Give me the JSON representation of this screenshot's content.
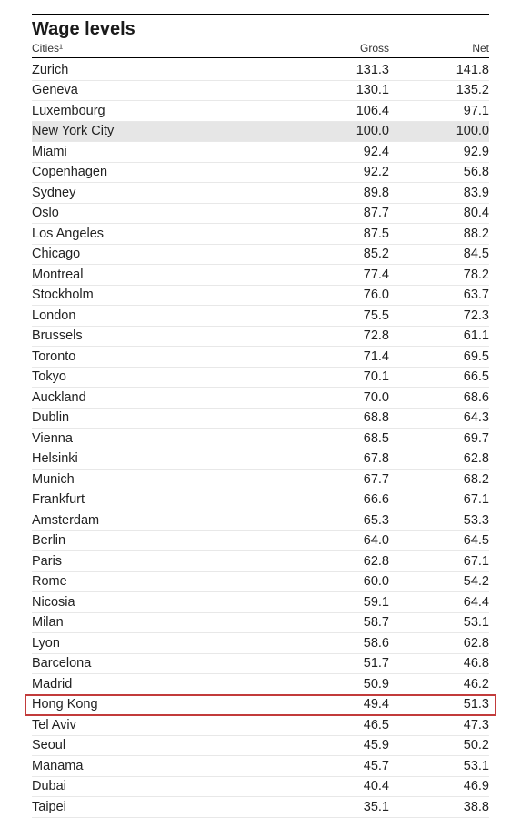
{
  "title": "Wage levels",
  "columns": {
    "city": "Cities¹",
    "gross": "Gross",
    "net": "Net"
  },
  "highlightCity": "Hong Kong",
  "grayCity": "New York City",
  "rows": [
    {
      "city": "Zurich",
      "gross": "131.3",
      "net": "141.8"
    },
    {
      "city": "Geneva",
      "gross": "130.1",
      "net": "135.2"
    },
    {
      "city": "Luxembourg",
      "gross": "106.4",
      "net": "97.1"
    },
    {
      "city": "New York City",
      "gross": "100.0",
      "net": "100.0"
    },
    {
      "city": "Miami",
      "gross": "92.4",
      "net": "92.9"
    },
    {
      "city": "Copenhagen",
      "gross": "92.2",
      "net": "56.8"
    },
    {
      "city": "Sydney",
      "gross": "89.8",
      "net": "83.9"
    },
    {
      "city": "Oslo",
      "gross": "87.7",
      "net": "80.4"
    },
    {
      "city": "Los Angeles",
      "gross": "87.5",
      "net": "88.2"
    },
    {
      "city": "Chicago",
      "gross": "85.2",
      "net": "84.5"
    },
    {
      "city": "Montreal",
      "gross": "77.4",
      "net": "78.2"
    },
    {
      "city": "Stockholm",
      "gross": "76.0",
      "net": "63.7"
    },
    {
      "city": "London",
      "gross": "75.5",
      "net": "72.3"
    },
    {
      "city": "Brussels",
      "gross": "72.8",
      "net": "61.1"
    },
    {
      "city": "Toronto",
      "gross": "71.4",
      "net": "69.5"
    },
    {
      "city": "Tokyo",
      "gross": "70.1",
      "net": "66.5"
    },
    {
      "city": "Auckland",
      "gross": "70.0",
      "net": "68.6"
    },
    {
      "city": "Dublin",
      "gross": "68.8",
      "net": "64.3"
    },
    {
      "city": "Vienna",
      "gross": "68.5",
      "net": "69.7"
    },
    {
      "city": "Helsinki",
      "gross": "67.8",
      "net": "62.8"
    },
    {
      "city": "Munich",
      "gross": "67.7",
      "net": "68.2"
    },
    {
      "city": "Frankfurt",
      "gross": "66.6",
      "net": "67.1"
    },
    {
      "city": "Amsterdam",
      "gross": "65.3",
      "net": "53.3"
    },
    {
      "city": "Berlin",
      "gross": "64.0",
      "net": "64.5"
    },
    {
      "city": "Paris",
      "gross": "62.8",
      "net": "67.1"
    },
    {
      "city": "Rome",
      "gross": "60.0",
      "net": "54.2"
    },
    {
      "city": "Nicosia",
      "gross": "59.1",
      "net": "64.4"
    },
    {
      "city": "Milan",
      "gross": "58.7",
      "net": "53.1"
    },
    {
      "city": "Lyon",
      "gross": "58.6",
      "net": "62.8"
    },
    {
      "city": "Barcelona",
      "gross": "51.7",
      "net": "46.8"
    },
    {
      "city": "Madrid",
      "gross": "50.9",
      "net": "46.2"
    },
    {
      "city": "Hong Kong",
      "gross": "49.4",
      "net": "51.3"
    },
    {
      "city": "Tel Aviv",
      "gross": "46.5",
      "net": "47.3"
    },
    {
      "city": "Seoul",
      "gross": "45.9",
      "net": "50.2"
    },
    {
      "city": "Manama",
      "gross": "45.7",
      "net": "53.1"
    },
    {
      "city": "Dubai",
      "gross": "40.4",
      "net": "46.9"
    },
    {
      "city": "Taipei",
      "gross": "35.1",
      "net": "38.8"
    }
  ]
}
